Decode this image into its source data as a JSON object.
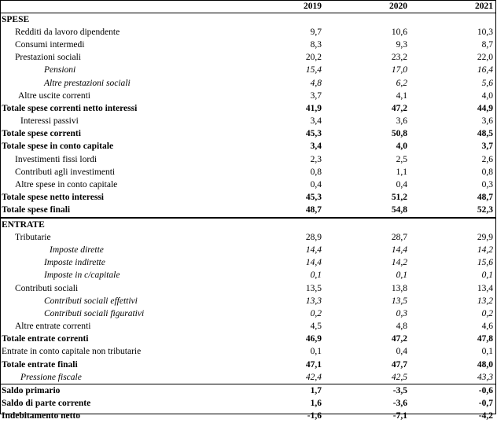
{
  "years": [
    "2019",
    "2020",
    "2021"
  ],
  "rows": [
    {
      "label": "SPESE",
      "v": [
        "",
        "",
        ""
      ],
      "style": "section"
    },
    {
      "label": "Redditi da lavoro dipendente",
      "v": [
        "9,7",
        "10,6",
        "10,3"
      ],
      "style": "normal",
      "indent": 1
    },
    {
      "label": "Consumi intermedi",
      "v": [
        "8,3",
        "9,3",
        "8,7"
      ],
      "style": "normal",
      "indent": 1
    },
    {
      "label": "Prestazioni sociali",
      "v": [
        "20,2",
        "23,2",
        "22,0"
      ],
      "style": "normal",
      "indent": 1
    },
    {
      "label": "Pensioni",
      "v": [
        "15,4",
        "17,0",
        "16,4"
      ],
      "style": "italic",
      "indent": 3
    },
    {
      "label": "Altre prestazioni sociali",
      "v": [
        "4,8",
        "6,2",
        "5,6"
      ],
      "style": "italic",
      "indent": 3
    },
    {
      "label": "Altre uscite correnti",
      "v": [
        "3,7",
        "4,1",
        "4,0"
      ],
      "style": "normal",
      "indent": 5
    },
    {
      "label": "Totale spese correnti netto interessi",
      "v": [
        "41,9",
        "47,2",
        "44,9"
      ],
      "style": "bold",
      "indent": 0
    },
    {
      "label": "Interessi passivi",
      "v": [
        "3,4",
        "3,6",
        "3,6"
      ],
      "style": "normal",
      "indent": 2
    },
    {
      "label": "Totale spese correnti",
      "v": [
        "45,3",
        "50,8",
        "48,5"
      ],
      "style": "bold",
      "indent": 0
    },
    {
      "label": "Totale spese in conto capitale",
      "v": [
        "3,4",
        "4,0",
        "3,7"
      ],
      "style": "bold",
      "indent": 0
    },
    {
      "label": "Investimenti fissi lordi",
      "v": [
        "2,3",
        "2,5",
        "2,6"
      ],
      "style": "normal",
      "indent": 1
    },
    {
      "label": "Contributi agli investimenti",
      "v": [
        "0,8",
        "1,1",
        "0,8"
      ],
      "style": "normal",
      "indent": 1
    },
    {
      "label": "Altre spese in conto capitale",
      "v": [
        "0,4",
        "0,4",
        "0,3"
      ],
      "style": "normal",
      "indent": 1
    },
    {
      "label": "Totale spese netto interessi",
      "v": [
        "45,3",
        "51,2",
        "48,7"
      ],
      "style": "bold",
      "indent": 0
    },
    {
      "label": "Totale spese finali",
      "v": [
        "48,7",
        "54,8",
        "52,3"
      ],
      "style": "bold",
      "indent": 0
    },
    {
      "label": "ENTRATE",
      "v": [
        "",
        "",
        ""
      ],
      "style": "section-boxed"
    },
    {
      "label": "Tributarie",
      "v": [
        "28,9",
        "28,7",
        "29,9"
      ],
      "style": "normal",
      "indent": 1
    },
    {
      "label": "Imposte dirette",
      "v": [
        "14,4",
        "14,4",
        "14,2"
      ],
      "style": "italic",
      "indent": 4
    },
    {
      "label": "Imposte indirette",
      "v": [
        "14,4",
        "14,2",
        "15,6"
      ],
      "style": "italic",
      "indent": 3
    },
    {
      "label": "Imposte in c/capitale",
      "v": [
        "0,1",
        "0,1",
        "0,1"
      ],
      "style": "italic",
      "indent": 3
    },
    {
      "label": "Contributi sociali",
      "v": [
        "13,5",
        "13,8",
        "13,4"
      ],
      "style": "normal",
      "indent": 1
    },
    {
      "label": "Contributi sociali effettivi",
      "v": [
        "13,3",
        "13,5",
        "13,2"
      ],
      "style": "italic",
      "indent": 3
    },
    {
      "label": "Contributi sociali figurativi",
      "v": [
        "0,2",
        "0,3",
        "0,2"
      ],
      "style": "italic",
      "indent": 3
    },
    {
      "label": "Altre entrate correnti",
      "v": [
        "4,5",
        "4,8",
        "4,6"
      ],
      "style": "normal",
      "indent": 1
    },
    {
      "label": "Totale entrate correnti",
      "v": [
        "46,9",
        "47,2",
        "47,8"
      ],
      "style": "bold",
      "indent": 0
    },
    {
      "label": "Entrate in conto capitale non tributarie",
      "v": [
        "0,1",
        "0,4",
        "0,1"
      ],
      "style": "normal",
      "indent": 0
    },
    {
      "label": "Totale entrate finali",
      "v": [
        "47,1",
        "47,7",
        "48,0"
      ],
      "style": "bold",
      "indent": 0
    },
    {
      "label": "Pressione fiscale",
      "v": [
        "42,4",
        "42,5",
        "43,3"
      ],
      "style": "italic",
      "indent": 2
    },
    {
      "label": "Saldo primario",
      "v": [
        "1,7",
        "-3,5",
        "-0,6"
      ],
      "style": "bold-line",
      "indent": 0
    },
    {
      "label": "Saldo di parte corrente",
      "v": [
        "1,6",
        "-3,6",
        "-0,7"
      ],
      "style": "bold",
      "indent": 0
    },
    {
      "label": "Indebitamento netto",
      "v": [
        "-1,6",
        "-7,1",
        "-4,2"
      ],
      "style": "bold",
      "indent": 0
    }
  ]
}
